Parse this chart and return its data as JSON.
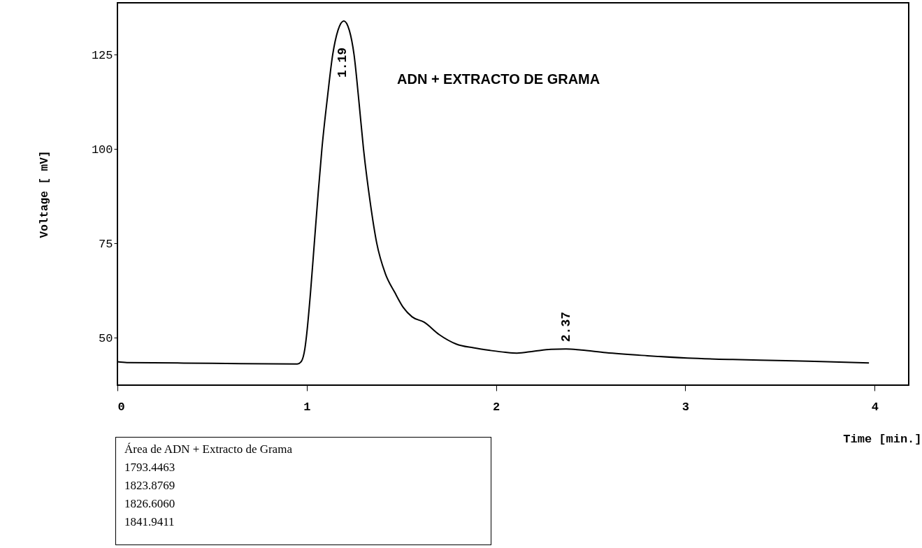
{
  "chart_data": {
    "type": "line",
    "xlabel": "Time [min.]",
    "ylabel": "Voltage [ mV]",
    "x": [
      0,
      0.05,
      0.5,
      0.95,
      0.97,
      0.99,
      1.0,
      1.02,
      1.04,
      1.06,
      1.08,
      1.11,
      1.137,
      1.165,
      1.196,
      1.225,
      1.25,
      1.275,
      1.3,
      1.335,
      1.37,
      1.415,
      1.465,
      1.51,
      1.557,
      1.62,
      1.7,
      1.79,
      1.88,
      1.97,
      2.05,
      2.11,
      2.2,
      2.29,
      2.37,
      2.45,
      2.58,
      2.8,
      3.01,
      3.25,
      3.53,
      3.75,
      3.97
    ],
    "series": [
      {
        "color": "#000000",
        "values": [
          43.6,
          43.4,
          43.2,
          43.0,
          43.6,
          47,
          51,
          62,
          75,
          88,
          100,
          114,
          125,
          131.5,
          134,
          131.5,
          125,
          113,
          100,
          86,
          75,
          67,
          62,
          58,
          55.5,
          54.1,
          50.8,
          48.3,
          47.3,
          46.6,
          46.1,
          45.9,
          46.4,
          46.9,
          47.0,
          46.7,
          46.0,
          45.2,
          44.6,
          44.2,
          43.9,
          43.6,
          43.3
        ]
      }
    ],
    "xlim": [
      0,
      4.18
    ],
    "ylim": [
      37.4,
      138.8
    ],
    "xticks": [
      0,
      1,
      2,
      3,
      4
    ],
    "yticks": [
      50,
      75,
      100,
      125
    ],
    "grid": false,
    "annotations": [
      {
        "text": "1.19",
        "x": 1.19,
        "y": 134
      },
      {
        "text": "2.37",
        "x": 2.37,
        "y": 47.0
      },
      "ADN + EXTRACTO DE GRAMA",
      "Área de ADN + Extracto de Grama",
      "1793.4463",
      "1823.8769",
      "1826.6060",
      "1841.9411"
    ]
  }
}
